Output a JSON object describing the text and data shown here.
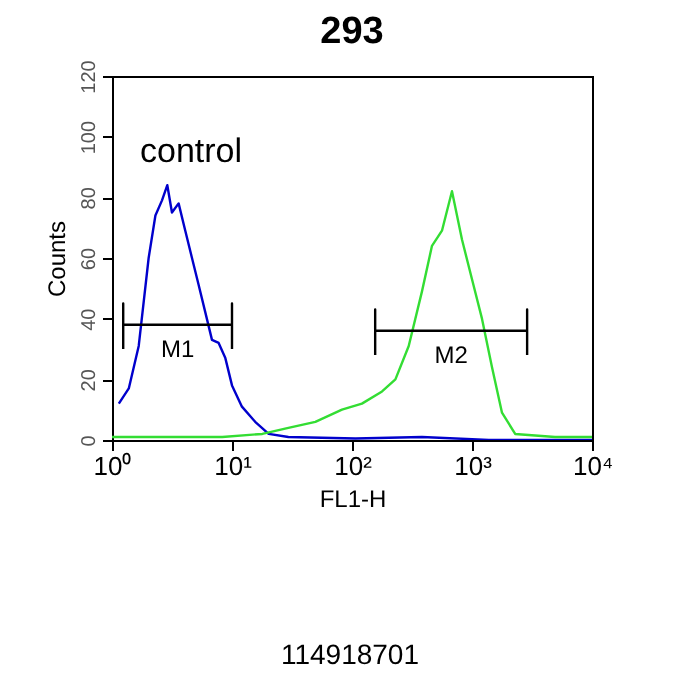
{
  "chart_data": {
    "type": "line",
    "title": "293",
    "xlabel": "FL1-H",
    "ylabel": "Counts",
    "log": "x",
    "legend": false,
    "grid": false,
    "xlim": [
      1,
      10000
    ],
    "xticks": [
      {
        "value": 1,
        "label": "10⁰"
      },
      {
        "value": 10,
        "label": "10¹"
      },
      {
        "value": 100,
        "label": "10²"
      },
      {
        "value": 1000,
        "label": "10³"
      },
      {
        "value": 10000,
        "label": "10⁴"
      }
    ],
    "ylim": [
      0,
      120
    ],
    "yticks": [
      0,
      20,
      40,
      60,
      80,
      100,
      120
    ],
    "series": [
      {
        "color": "#0000cc",
        "x": [
          1.14,
          1.38,
          1.67,
          2.02,
          2.3,
          2.61,
          2.89,
          3.16,
          3.59,
          4.08,
          4.64,
          5.28,
          6.0,
          6.81,
          7.74,
          8.8,
          10,
          12.1,
          15.6,
          20.2,
          29.5,
          107,
          383,
          1380,
          10000
        ],
        "values": [
          12,
          17,
          31,
          60,
          74,
          79,
          84,
          75,
          78,
          69,
          60,
          51,
          42,
          33,
          32,
          27,
          18,
          11,
          6,
          2,
          1,
          0.5,
          1,
          0,
          0
        ]
      },
      {
        "color": "#33dd33",
        "x": [
          1,
          2.3,
          8.3,
          17.9,
          29.5,
          49.5,
          82.5,
          121,
          178,
          230,
          297,
          383,
          464,
          562,
          681,
          826,
          1000,
          1211,
          1468,
          1778,
          2290,
          4920,
          10000
        ],
        "values": [
          1,
          1,
          1,
          2,
          4,
          6,
          10,
          12,
          16,
          20,
          31,
          49,
          64,
          69,
          82,
          66,
          53,
          40,
          24,
          9,
          2,
          1,
          1
        ]
      },
      {
        "name": "M1",
        "color": "#000000",
        "x": [
          1.24,
          1.24,
          1.24,
          10,
          10,
          10
        ],
        "values": [
          30,
          45,
          38,
          38,
          45,
          30
        ]
      },
      {
        "name": "M2",
        "color": "#000000",
        "x": [
          156,
          156,
          156,
          2880,
          2880,
          2880
        ],
        "values": [
          28,
          43,
          36,
          36,
          43,
          28
        ]
      }
    ],
    "annotations": [
      "control",
      "114918701"
    ]
  }
}
